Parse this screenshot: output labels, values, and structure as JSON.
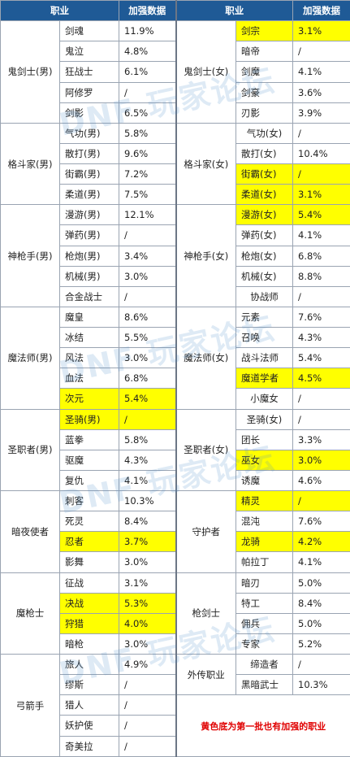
{
  "headers": [
    "职业",
    "加强数据",
    "职业",
    "加强数据"
  ],
  "left_groups": [
    {
      "name": "鬼剑士(男)",
      "rows": [
        {
          "job": "剑魂",
          "val": "11.9%",
          "hl": false
        },
        {
          "job": "鬼泣",
          "val": "4.8%",
          "hl": false
        },
        {
          "job": "狂战士",
          "val": "6.1%",
          "hl": false
        },
        {
          "job": "阿修罗",
          "val": "/",
          "hl": false
        },
        {
          "job": "剑影",
          "val": "6.5%",
          "hl": false
        }
      ]
    },
    {
      "name": "格斗家(男)",
      "rows": [
        {
          "job": "气功(男)",
          "val": "5.8%",
          "hl": false
        },
        {
          "job": "散打(男)",
          "val": "9.6%",
          "hl": false
        },
        {
          "job": "街霸(男)",
          "val": "7.2%",
          "hl": false
        },
        {
          "job": "柔道(男)",
          "val": "7.5%",
          "hl": false
        }
      ]
    },
    {
      "name": "神枪手(男)",
      "rows": [
        {
          "job": "漫游(男)",
          "val": "12.1%",
          "hl": false
        },
        {
          "job": "弹药(男)",
          "val": "/",
          "hl": false
        },
        {
          "job": "枪炮(男)",
          "val": "3.4%",
          "hl": false
        },
        {
          "job": "机械(男)",
          "val": "3.0%",
          "hl": false
        },
        {
          "job": "合金战士",
          "val": "/",
          "hl": false
        }
      ]
    },
    {
      "name": "魔法师(男)",
      "rows": [
        {
          "job": "魔皇",
          "val": "8.6%",
          "hl": false
        },
        {
          "job": "冰结",
          "val": "5.5%",
          "hl": false
        },
        {
          "job": "风法",
          "val": "3.0%",
          "hl": false
        },
        {
          "job": "血法",
          "val": "6.8%",
          "hl": false
        },
        {
          "job": "次元",
          "val": "5.4%",
          "hl": true
        }
      ]
    },
    {
      "name": "圣职者(男)",
      "rows": [
        {
          "job": "圣骑(男)",
          "val": "/",
          "hl": true
        },
        {
          "job": "蓝拳",
          "val": "5.8%",
          "hl": false
        },
        {
          "job": "驱魔",
          "val": "4.3%",
          "hl": false
        },
        {
          "job": "复仇",
          "val": "4.1%",
          "hl": false
        }
      ]
    },
    {
      "name": "暗夜使者",
      "rows": [
        {
          "job": "刺客",
          "val": "10.3%",
          "hl": false
        },
        {
          "job": "死灵",
          "val": "8.4%",
          "hl": false
        },
        {
          "job": "忍者",
          "val": "3.7%",
          "hl": true
        },
        {
          "job": "影舞",
          "val": "3.0%",
          "hl": false
        }
      ]
    },
    {
      "name": "魔枪士",
      "rows": [
        {
          "job": "征战",
          "val": "3.1%",
          "hl": false
        },
        {
          "job": "决战",
          "val": "5.3%",
          "hl": true
        },
        {
          "job": "狩猎",
          "val": "4.0%",
          "hl": true
        },
        {
          "job": "暗枪",
          "val": "3.0%",
          "hl": false
        }
      ]
    },
    {
      "name": "弓箭手",
      "rows": [
        {
          "job": "旅人",
          "val": "4.9%",
          "hl": false
        },
        {
          "job": "缪斯",
          "val": "/",
          "hl": false
        },
        {
          "job": "猎人",
          "val": "/",
          "hl": false
        },
        {
          "job": "妖护使",
          "val": "/",
          "hl": false
        },
        {
          "job": "奇美拉",
          "val": "/",
          "hl": false
        }
      ]
    }
  ],
  "right_groups": [
    {
      "name": "鬼剑士(女)",
      "rows": [
        {
          "job": "剑宗",
          "val": "3.1%",
          "hl": true
        },
        {
          "job": "暗帝",
          "val": "/",
          "hl": false
        },
        {
          "job": "剑魔",
          "val": "4.1%",
          "hl": false
        },
        {
          "job": "剑豪",
          "val": "3.6%",
          "hl": false
        },
        {
          "job": "刃影",
          "val": "3.9%",
          "hl": false
        }
      ]
    },
    {
      "name": "格斗家(女)",
      "rows": [
        {
          "job": "气功(女)",
          "val": "/",
          "hl": false
        },
        {
          "job": "散打(女)",
          "val": "10.4%",
          "hl": false
        },
        {
          "job": "街霸(女)",
          "val": "/",
          "hl": true
        },
        {
          "job": "柔道(女)",
          "val": "3.1%",
          "hl": true
        }
      ]
    },
    {
      "name": "神枪手(女)",
      "rows": [
        {
          "job": "漫游(女)",
          "val": "5.4%",
          "hl": true
        },
        {
          "job": "弹药(女)",
          "val": "4.1%",
          "hl": false
        },
        {
          "job": "枪炮(女)",
          "val": "6.8%",
          "hl": false
        },
        {
          "job": "机械(女)",
          "val": "8.8%",
          "hl": false
        },
        {
          "job": "协战师",
          "val": "/",
          "hl": false
        }
      ]
    },
    {
      "name": "魔法师(女)",
      "rows": [
        {
          "job": "元素",
          "val": "7.6%",
          "hl": false
        },
        {
          "job": "召唤",
          "val": "4.3%",
          "hl": false
        },
        {
          "job": "战斗法师",
          "val": "5.4%",
          "hl": false
        },
        {
          "job": "魔道学者",
          "val": "4.5%",
          "hl": true
        },
        {
          "job": "小魔女",
          "val": "/",
          "hl": false
        }
      ]
    },
    {
      "name": "圣职者(女)",
      "rows": [
        {
          "job": "圣骑(女)",
          "val": "/",
          "hl": false
        },
        {
          "job": "团长",
          "val": "3.3%",
          "hl": false
        },
        {
          "job": "巫女",
          "val": "3.0%",
          "hl": true
        },
        {
          "job": "诱魔",
          "val": "4.6%",
          "hl": false
        }
      ]
    },
    {
      "name": "守护者",
      "rows": [
        {
          "job": "精灵",
          "val": "/",
          "hl": true
        },
        {
          "job": "混沌",
          "val": "7.6%",
          "hl": false
        },
        {
          "job": "龙骑",
          "val": "4.2%",
          "hl": true
        },
        {
          "job": "帕拉丁",
          "val": "4.1%",
          "hl": false
        }
      ]
    },
    {
      "name": "枪剑士",
      "rows": [
        {
          "job": "暗刃",
          "val": "5.0%",
          "hl": false
        },
        {
          "job": "特工",
          "val": "8.4%",
          "hl": false
        },
        {
          "job": "佣兵",
          "val": "5.0%",
          "hl": false
        },
        {
          "job": "专家",
          "val": "5.2%",
          "hl": false
        }
      ]
    },
    {
      "name": "外传职业",
      "rows": [
        {
          "job": "缔造者",
          "val": "/",
          "hl": false
        },
        {
          "job": "黑暗武士",
          "val": "10.3%",
          "hl": false
        }
      ]
    }
  ],
  "note": "黄色底为第一批也有加强的职业",
  "watermark": "DNF 玩家论坛",
  "colors": {
    "header_bg": "#1f5a96",
    "highlight": "#ffff00",
    "note_text": "#e00000"
  }
}
